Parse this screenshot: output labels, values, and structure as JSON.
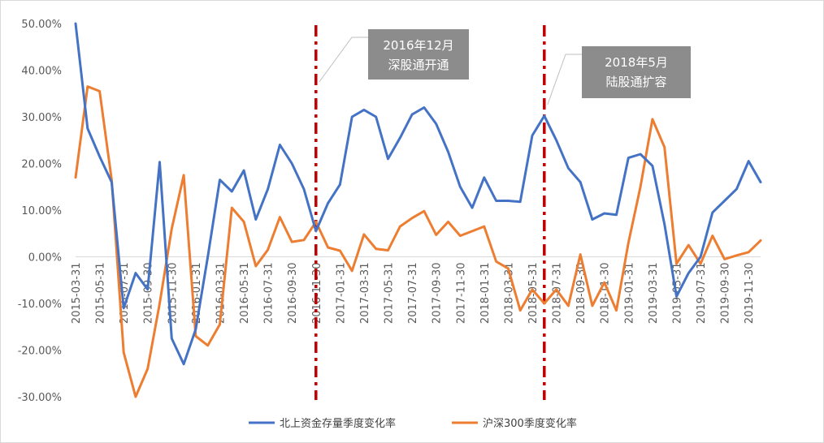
{
  "chart_data": {
    "type": "line",
    "title": "",
    "xlabel": "",
    "ylabel": "",
    "ylim": [
      -30,
      50
    ],
    "yticks": [
      "50.00%",
      "40.00%",
      "30.00%",
      "20.00%",
      "10.00%",
      "0.00%",
      "-10.00%",
      "-20.00%",
      "-30.00%"
    ],
    "ytick_values": [
      50,
      40,
      30,
      20,
      10,
      0,
      -10,
      -20,
      -30
    ],
    "xticks": [
      "2015-03-31",
      "2015-05-31",
      "2015-07-31",
      "2015-09-30",
      "2015-11-30",
      "2016-01-31",
      "2016-03-31",
      "2016-05-31",
      "2016-07-31",
      "2016-09-30",
      "2016-11-30",
      "2017-01-31",
      "2017-03-31",
      "2017-05-31",
      "2017-07-31",
      "2017-09-30",
      "2017-11-30",
      "2018-01-31",
      "2018-03-31",
      "2018-05-31",
      "2018-07-31",
      "2018-09-30",
      "2018-11-30",
      "2019-01-31",
      "2019-03-31",
      "2019-05-31",
      "2019-07-31",
      "2019-09-30",
      "2019-11-30"
    ],
    "series": [
      {
        "name": "北上资金存量季度变化率",
        "color": "#4472c4",
        "values": [
          50,
          27.5,
          21.5,
          16,
          -11,
          -3.5,
          -7,
          20.3,
          -17.5,
          -23,
          -15.5,
          0,
          16.5,
          14,
          18.5,
          8,
          14.5,
          24,
          20,
          14.5,
          5.5,
          11.5,
          15.5,
          30,
          31.5,
          30,
          21,
          25.5,
          30.5,
          32,
          28.5,
          22.5,
          15,
          10.5,
          17,
          12,
          12,
          11.8,
          26,
          30.2,
          25,
          19,
          16,
          8,
          9.3,
          9,
          21.2,
          22,
          19.5,
          7,
          -8.5,
          -3.5,
          0,
          9.5,
          12,
          14.5,
          20.5,
          16
        ]
      },
      {
        "name": "沪深300季度变化率",
        "color": "#ed7d31",
        "values": [
          17,
          36.5,
          35.5,
          16.5,
          -20.5,
          -30,
          -24,
          -10,
          6,
          17.5,
          -17,
          -19,
          -14.5,
          10.5,
          7.5,
          -2,
          1.5,
          8.5,
          3.2,
          3.6,
          7.5,
          2,
          1.3,
          -3,
          4.8,
          1.7,
          1.4,
          6.5,
          8.3,
          9.8,
          4.7,
          7.5,
          4.5,
          5.5,
          6.5,
          -1,
          -2.5,
          -11.5,
          -7,
          -10,
          -7,
          -10.5,
          0.5,
          -10.5,
          -5.5,
          -11.5,
          3,
          15,
          29.5,
          23.5,
          -1.5,
          2.5,
          -1.5,
          4.5,
          -0.5,
          0.3,
          1,
          3.5
        ]
      }
    ],
    "event_markers": [
      {
        "x_index": 20,
        "label_line1": "2016年12月",
        "label_line2": "深股通开通"
      },
      {
        "x_index": 39,
        "label_line1": "2018年5月",
        "label_line2": "陆股通扩容"
      }
    ],
    "legend_position": "bottom",
    "grid": false
  }
}
